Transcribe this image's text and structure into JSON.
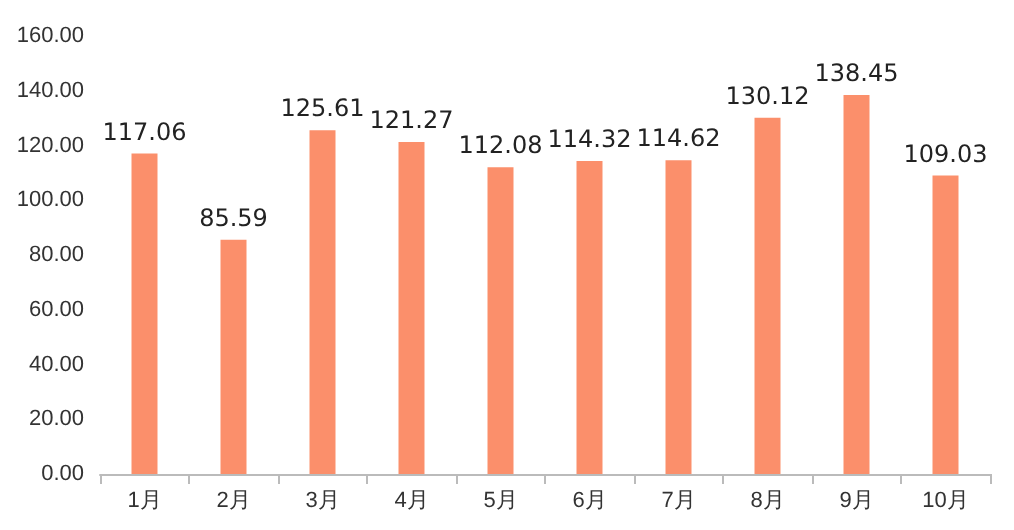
{
  "chart_data": {
    "type": "bar",
    "categories": [
      "1月",
      "2月",
      "3月",
      "4月",
      "5月",
      "6月",
      "7月",
      "8月",
      "9月",
      "10月"
    ],
    "values": [
      117.06,
      85.59,
      125.61,
      121.27,
      112.08,
      114.32,
      114.62,
      130.12,
      138.45,
      109.03
    ],
    "color": "#fb8f6b",
    "data_labels": true,
    "ylim": [
      0,
      160
    ],
    "yticks": [
      {
        "value": 0,
        "label": "0.00"
      },
      {
        "value": 20,
        "label": "20.00"
      },
      {
        "value": 40,
        "label": "40.00"
      },
      {
        "value": 60,
        "label": "60.00"
      },
      {
        "value": 80,
        "label": "80.00"
      },
      {
        "value": 100,
        "label": "100.00"
      },
      {
        "value": 120,
        "label": "120.00"
      },
      {
        "value": 140,
        "label": "140.00"
      },
      {
        "value": 160,
        "label": "160.00"
      }
    ]
  }
}
